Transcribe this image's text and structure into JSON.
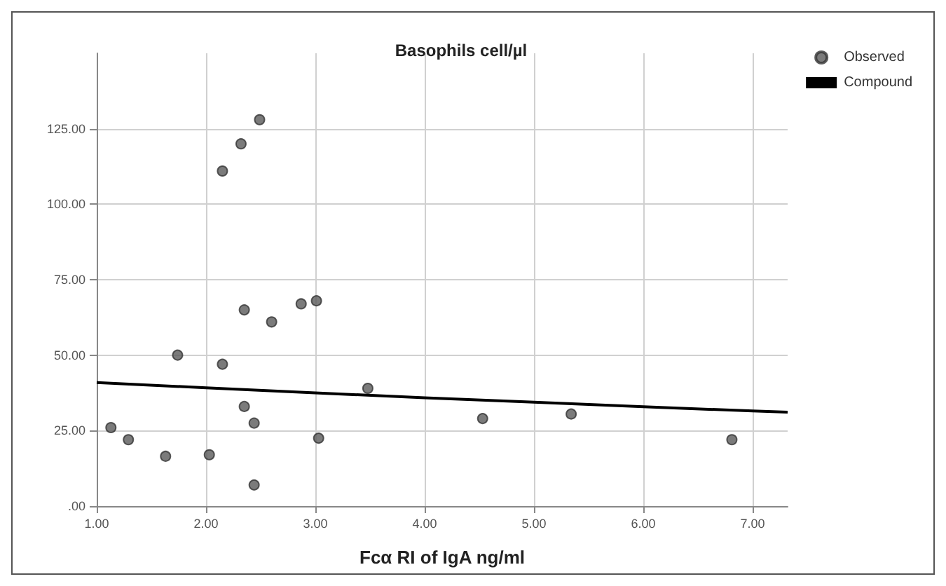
{
  "chart_data": {
    "type": "scatter",
    "title": "Basophils cell/µl",
    "xlabel": "Fcα RI of IgA ng/ml",
    "xlim": [
      1,
      7.32
    ],
    "ylim": [
      0,
      150
    ],
    "xticks": [
      {
        "value": 1,
        "label": "1.00"
      },
      {
        "value": 2,
        "label": "2.00"
      },
      {
        "value": 3,
        "label": "3.00"
      },
      {
        "value": 4,
        "label": "4.00"
      },
      {
        "value": 5,
        "label": "5.00"
      },
      {
        "value": 6,
        "label": "6.00"
      },
      {
        "value": 7,
        "label": "7.00"
      }
    ],
    "yticks": [
      {
        "value": 0,
        "label": ".00"
      },
      {
        "value": 25,
        "label": "25.00"
      },
      {
        "value": 50,
        "label": "50.00"
      },
      {
        "value": 75,
        "label": "75.00"
      },
      {
        "value": 100,
        "label": "100.00"
      },
      {
        "value": 125,
        "label": "125.00"
      }
    ],
    "grid": true,
    "legend": "top right",
    "marker": "circle",
    "series": [
      {
        "name": "Observed",
        "color": "#5a5a5a",
        "x": [
          1.13,
          1.29,
          1.63,
          1.74,
          2.03,
          2.15,
          2.15,
          2.32,
          2.49,
          2.35,
          2.6,
          2.87,
          3.01,
          2.35,
          2.44,
          2.44,
          3.03,
          3.48,
          4.53,
          5.34,
          6.81
        ],
        "values": [
          26,
          22,
          16.5,
          50,
          17,
          47,
          111,
          120,
          128,
          65,
          61,
          67,
          68,
          33,
          27.5,
          7,
          22.5,
          39,
          29,
          30.5,
          22
        ]
      },
      {
        "name": "Compound",
        "type": "line",
        "color": "#000000",
        "marker": "none",
        "line_style": "solid",
        "x": [
          1,
          2,
          3,
          4,
          5,
          6,
          7,
          7.32
        ],
        "values": [
          40.9,
          39.2,
          37.5,
          35.9,
          34.4,
          32.9,
          31.5,
          31.1
        ]
      }
    ]
  }
}
